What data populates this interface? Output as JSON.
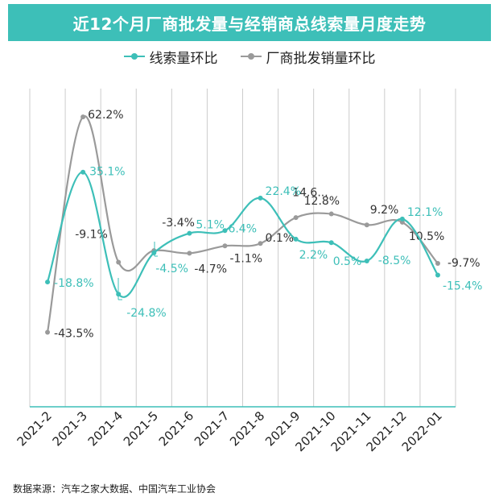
{
  "header": {
    "title": "近12个月厂商批发量与经销商总线索量月度走势"
  },
  "source": "数据来源：汽车之家大数据、中国汽车工业协会",
  "colors": {
    "teal": "#3dbfb8",
    "gray": "#9a9a9a",
    "title_bg": "#3dbfb8",
    "grid": "#cccccc"
  },
  "chart_data": {
    "type": "line",
    "title": "近12个月厂商批发量与经销商总线索量月度走势",
    "categories": [
      "2021-2",
      "2021-3",
      "2021-4",
      "2021-5",
      "2021-6",
      "2021-7",
      "2021-8",
      "2021-9",
      "2021-10",
      "2021-11",
      "2021-12",
      "2022-01"
    ],
    "ylim": [
      -80,
      80
    ],
    "grid": "vertical",
    "legend_position": "top-center",
    "series": [
      {
        "name": "线索量环比",
        "color": "#3dbfb8",
        "values": [
          -18.8,
          35.1,
          -24.8,
          -4.5,
          5.1,
          6.4,
          22.4,
          2.2,
          0.5,
          -8.5,
          12.1,
          -15.4
        ],
        "labels": [
          "-18.8%",
          "35.1%",
          "-24.8%",
          "-4.5%",
          "5.1%",
          "6.4%",
          "22.4%",
          "2.2%",
          "0.5%",
          "-8.5%",
          "12.1%",
          "-15.4%"
        ]
      },
      {
        "name": "厂商批发销量环比",
        "color": "#9a9a9a",
        "values": [
          -43.5,
          62.2,
          -9.1,
          -3.4,
          -4.7,
          -1.1,
          0.1,
          12.8,
          14.6,
          9.2,
          10.5,
          -9.7
        ],
        "labels": [
          "-43.5%",
          "62.2%",
          "-9.1%",
          "-3.4%",
          "-4.7%",
          "-1.1%",
          "0.1%",
          "12.8%",
          "14.6...",
          "9.2%",
          "10.5%",
          "-9.7%"
        ]
      }
    ]
  }
}
